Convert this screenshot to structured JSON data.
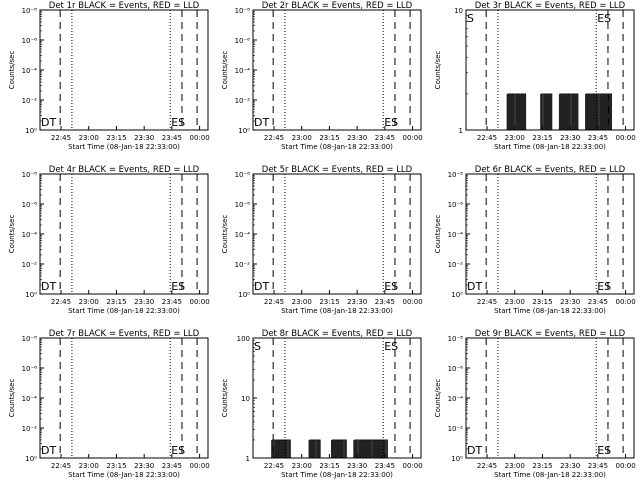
{
  "x_start_label": "Start Time (08-Jan-18 22:33:00)",
  "x_tick_labels": [
    "22:45",
    "23:00",
    "23:15",
    "23:30",
    "23:45",
    "00:00"
  ],
  "y_label": "Counts/sec",
  "marker_labels": {
    "dt": "DT",
    "es": "ES",
    "s": "S"
  },
  "chart_data": [
    {
      "type": "line",
      "title": "Det 1r BLACK = Events, RED = LLD",
      "y_scale": "log",
      "ylim": [
        1,
        1e-08
      ],
      "y_tick_labels": [
        "10⁻⁸",
        "10⁻⁶",
        "10⁻⁴",
        "10⁻²",
        "10⁰"
      ],
      "xlim_minutes": [
        0,
        90
      ],
      "markers": [
        "DT",
        "ES"
      ],
      "series": []
    },
    {
      "type": "line",
      "title": "Det 2r BLACK = Events, RED = LLD",
      "y_scale": "log",
      "ylim": [
        1,
        1e-08
      ],
      "y_tick_labels": [
        "10⁻⁸",
        "10⁻⁶",
        "10⁻⁴",
        "10⁻²",
        "10⁰"
      ],
      "xlim_minutes": [
        0,
        90
      ],
      "markers": [
        "DT",
        "ES"
      ],
      "series": []
    },
    {
      "type": "line",
      "title": "Det 3r BLACK = Events, RED = LLD",
      "y_scale": "log",
      "ylim": [
        1,
        10
      ],
      "y_tick_labels": [
        "10",
        "1"
      ],
      "xlim_minutes": [
        0,
        90
      ],
      "markers": [
        "S",
        "ES"
      ],
      "series": [
        {
          "color": "#000000",
          "segments": [
            [
              22,
              32
            ],
            [
              40,
              46
            ],
            [
              50,
              60
            ],
            [
              64,
              78
            ]
          ],
          "low": 1,
          "high": 2
        }
      ]
    },
    {
      "type": "line",
      "title": "Det 4r BLACK = Events, RED = LLD",
      "y_scale": "log",
      "ylim": [
        1,
        1e-08
      ],
      "y_tick_labels": [
        "10⁻⁸",
        "10⁻⁶",
        "10⁻⁴",
        "10⁻²",
        "10⁰"
      ],
      "xlim_minutes": [
        0,
        90
      ],
      "markers": [
        "DT",
        "ES"
      ],
      "series": []
    },
    {
      "type": "line",
      "title": "Det 5r BLACK = Events, RED = LLD",
      "y_scale": "log",
      "ylim": [
        1,
        1e-08
      ],
      "y_tick_labels": [
        "10⁻⁸",
        "10⁻⁶",
        "10⁻⁴",
        "10⁻²",
        "10⁰"
      ],
      "xlim_minutes": [
        0,
        90
      ],
      "markers": [
        "DT",
        "ES"
      ],
      "series": []
    },
    {
      "type": "line",
      "title": "Det 6r BLACK = Events, RED = LLD",
      "y_scale": "log",
      "ylim": [
        1,
        1e-08
      ],
      "y_tick_labels": [
        "10⁻⁸",
        "10⁻⁶",
        "10⁻⁴",
        "10⁻²",
        "10⁰"
      ],
      "xlim_minutes": [
        0,
        90
      ],
      "markers": [
        "DT",
        "ES"
      ],
      "series": []
    },
    {
      "type": "line",
      "title": "Det 7r BLACK = Events, RED = LLD",
      "y_scale": "log",
      "ylim": [
        1,
        1e-08
      ],
      "y_tick_labels": [
        "10⁻⁸",
        "10⁻⁶",
        "10⁻⁴",
        "10⁻²",
        "10⁰"
      ],
      "xlim_minutes": [
        0,
        90
      ],
      "markers": [
        "DT",
        "ES"
      ],
      "series": []
    },
    {
      "type": "line",
      "title": "Det 8r BLACK = Events, RED = LLD",
      "y_scale": "log",
      "ylim": [
        1,
        100
      ],
      "y_tick_labels": [
        "100",
        "10",
        "1"
      ],
      "xlim_minutes": [
        0,
        90
      ],
      "markers": [
        "S",
        "ES"
      ],
      "series": [
        {
          "color": "#000000",
          "segments": [
            [
              10,
              20
            ],
            [
              30,
              36
            ],
            [
              42,
              50
            ],
            [
              54,
              72
            ]
          ],
          "low": 1,
          "high": 2
        }
      ]
    },
    {
      "type": "line",
      "title": "Det 9r BLACK = Events, RED = LLD",
      "y_scale": "log",
      "ylim": [
        1,
        1e-08
      ],
      "y_tick_labels": [
        "10⁻⁸",
        "10⁻⁶",
        "10⁻⁴",
        "10⁻²",
        "10⁰"
      ],
      "xlim_minutes": [
        0,
        90
      ],
      "markers": [
        "DT",
        "ES"
      ],
      "series": []
    }
  ]
}
